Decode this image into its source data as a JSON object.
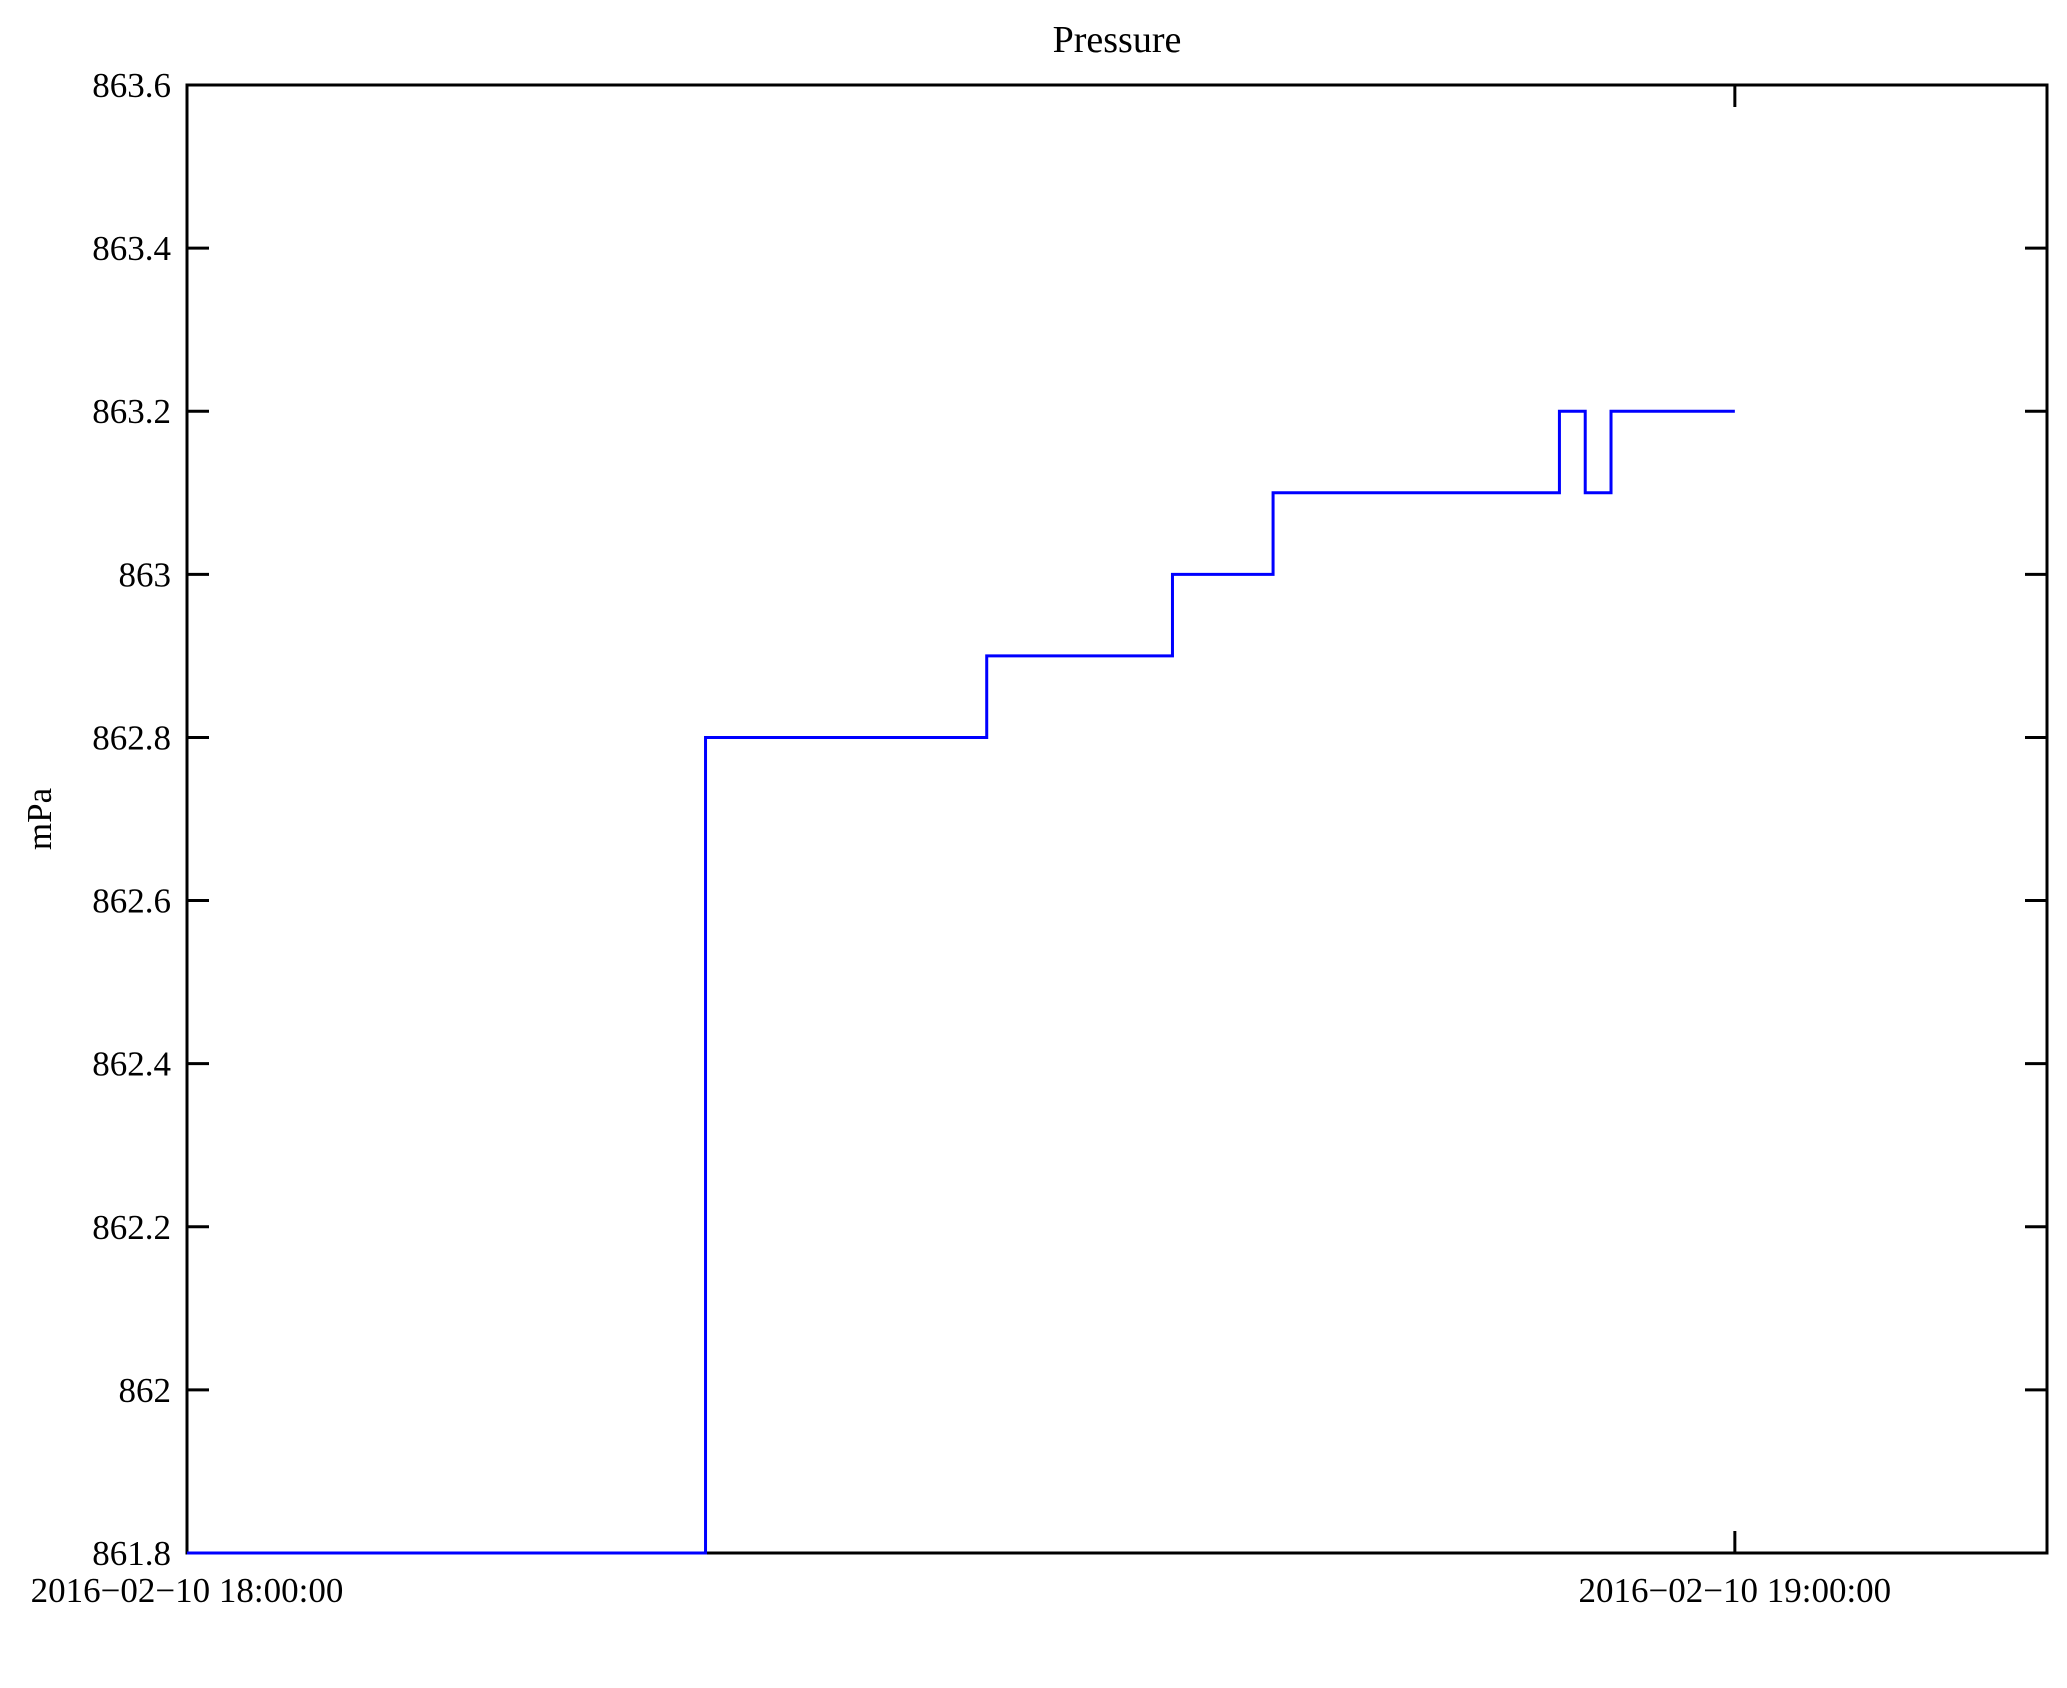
{
  "chart_data": {
    "type": "line",
    "subtype": "step-post",
    "title": "Pressure",
    "ylabel": "mPa",
    "xlabel": "",
    "legend": "none",
    "grid": false,
    "line_color": "#0000FF",
    "axis_color": "#000000",
    "background_color": "#FFFFFF",
    "ylim": [
      861.8,
      863.6
    ],
    "xlim_minutes": [
      0,
      72.1
    ],
    "y_ticks": [
      861.8,
      862.0,
      862.2,
      862.4,
      862.6,
      862.8,
      863.0,
      863.2,
      863.4,
      863.6
    ],
    "y_tick_labels": [
      "861.8",
      "862",
      "862.2",
      "862.4",
      "862.6",
      "862.8",
      "863",
      "863.2",
      "863.4",
      "863.6"
    ],
    "x_ticks": [
      {
        "minutes": 0,
        "label": "2016−02−10 18:00:00"
      },
      {
        "minutes": 60,
        "label": "2016−02−10 19:00:00"
      }
    ],
    "series": [
      {
        "name": "pressure",
        "unit": "mPa",
        "steps": [
          {
            "time": "18:00:00",
            "minutes": 0.0,
            "value": 861.8
          },
          {
            "time": "18:20:06",
            "minutes": 20.1,
            "value": 862.8
          },
          {
            "time": "18:31:00",
            "minutes": 31.0,
            "value": 862.9
          },
          {
            "time": "18:38:12",
            "minutes": 38.2,
            "value": 863.0
          },
          {
            "time": "18:42:06",
            "minutes": 42.1,
            "value": 863.1
          },
          {
            "time": "18:53:12",
            "minutes": 53.2,
            "value": 863.2
          },
          {
            "time": "18:54:12",
            "minutes": 54.2,
            "value": 863.1
          },
          {
            "time": "18:55:12",
            "minutes": 55.2,
            "value": 863.2
          }
        ],
        "end_time": "19:00:00",
        "end_minutes": 60.0
      }
    ]
  }
}
